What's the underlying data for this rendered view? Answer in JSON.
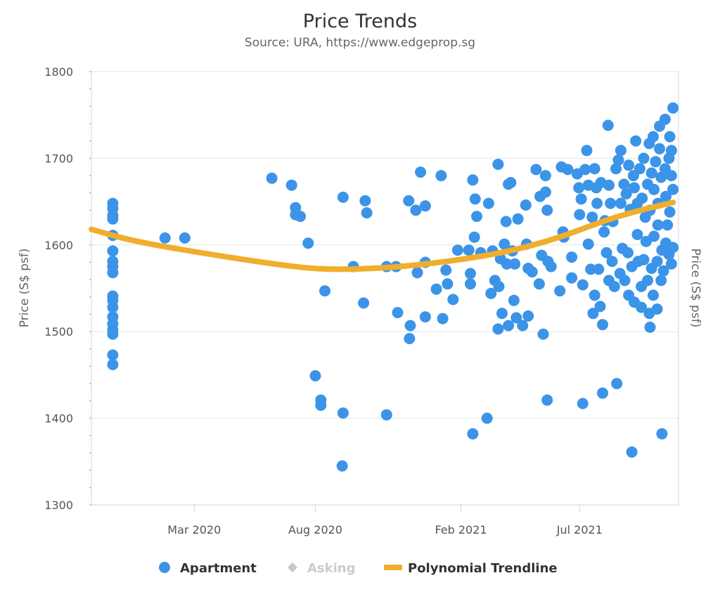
{
  "chart_data": {
    "type": "scatter",
    "title": "Price Trends",
    "subtitle": "Source: URA, https://www.edgeprop.sg",
    "ylabel": "Price (S$ psf)",
    "ylabel_right": "Price (S$ psf)",
    "xlabel": "",
    "ylim": [
      1300,
      1800
    ],
    "y_ticks": [
      1300,
      1400,
      1500,
      1600,
      1700,
      1800
    ],
    "xlim": [
      "2019-10-23",
      "2021-11-03"
    ],
    "x_ticks": [
      {
        "date": "2020-03-01",
        "label": "Mar 2020"
      },
      {
        "date": "2020-08-01",
        "label": "Aug 2020"
      },
      {
        "date": "2021-02-01",
        "label": "Feb 2021"
      },
      {
        "date": "2021-07-01",
        "label": "Jul 2021"
      }
    ],
    "grid": "horizontal",
    "legend_placement": "bottom",
    "colors": {
      "apartment": "#3b94e8",
      "asking": "#c8c8c8",
      "trendline": "#f0ae2c"
    },
    "legend": [
      {
        "name": "Apartment",
        "symbol": "circle",
        "enabled": true
      },
      {
        "name": "Asking",
        "symbol": "diamond",
        "enabled": false
      },
      {
        "name": "Polynomial Trendline",
        "symbol": "line",
        "enabled": true
      }
    ],
    "series": [
      {
        "name": "Apartment",
        "points": [
          [
            "2019-11-19",
            1648
          ],
          [
            "2019-11-19",
            1642
          ],
          [
            "2019-11-19",
            1634
          ],
          [
            "2019-11-19",
            1630
          ],
          [
            "2019-11-19",
            1611
          ],
          [
            "2019-11-19",
            1593
          ],
          [
            "2019-11-19",
            1581
          ],
          [
            "2019-11-19",
            1575
          ],
          [
            "2019-11-19",
            1568
          ],
          [
            "2019-11-19",
            1541
          ],
          [
            "2019-11-19",
            1536
          ],
          [
            "2019-11-19",
            1528
          ],
          [
            "2019-11-19",
            1517
          ],
          [
            "2019-11-19",
            1509
          ],
          [
            "2019-11-19",
            1502
          ],
          [
            "2019-11-19",
            1497
          ],
          [
            "2019-11-19",
            1473
          ],
          [
            "2019-11-19",
            1462
          ],
          [
            "2020-01-24",
            1608
          ],
          [
            "2020-02-18",
            1608
          ],
          [
            "2020-06-07",
            1677
          ],
          [
            "2020-07-02",
            1669
          ],
          [
            "2020-07-07",
            1643
          ],
          [
            "2020-07-07",
            1635
          ],
          [
            "2020-07-13",
            1633
          ],
          [
            "2020-07-23",
            1602
          ],
          [
            "2020-08-01",
            1449
          ],
          [
            "2020-08-08",
            1421
          ],
          [
            "2020-08-08",
            1415
          ],
          [
            "2020-08-13",
            1547
          ],
          [
            "2020-09-05",
            1655
          ],
          [
            "2020-09-05",
            1406
          ],
          [
            "2020-09-04",
            1345
          ],
          [
            "2020-09-18",
            1575
          ],
          [
            "2020-10-01",
            1533
          ],
          [
            "2020-10-03",
            1651
          ],
          [
            "2020-10-05",
            1637
          ],
          [
            "2020-10-30",
            1575
          ],
          [
            "2020-10-30",
            1404
          ],
          [
            "2020-11-11",
            1575
          ],
          [
            "2020-11-13",
            1522
          ],
          [
            "2020-11-27",
            1651
          ],
          [
            "2020-11-28",
            1492
          ],
          [
            "2020-11-29",
            1507
          ],
          [
            "2020-12-06",
            1640
          ],
          [
            "2020-12-08",
            1568
          ],
          [
            "2020-12-12",
            1684
          ],
          [
            "2020-12-18",
            1580
          ],
          [
            "2020-12-18",
            1645
          ],
          [
            "2020-12-18",
            1517
          ],
          [
            "2021-01-01",
            1549
          ],
          [
            "2021-01-07",
            1680
          ],
          [
            "2021-01-09",
            1515
          ],
          [
            "2021-01-13",
            1571
          ],
          [
            "2021-01-15",
            1555
          ],
          [
            "2021-01-22",
            1537
          ],
          [
            "2021-01-28",
            1594
          ],
          [
            "2021-02-11",
            1594
          ],
          [
            "2021-02-13",
            1567
          ],
          [
            "2021-02-13",
            1555
          ],
          [
            "2021-02-16",
            1675
          ],
          [
            "2021-02-16",
            1382
          ],
          [
            "2021-02-18",
            1609
          ],
          [
            "2021-02-19",
            1653
          ],
          [
            "2021-02-21",
            1633
          ],
          [
            "2021-02-26",
            1591
          ],
          [
            "2021-03-06",
            1400
          ],
          [
            "2021-03-08",
            1648
          ],
          [
            "2021-03-11",
            1544
          ],
          [
            "2021-03-13",
            1593
          ],
          [
            "2021-03-16",
            1559
          ],
          [
            "2021-03-20",
            1693
          ],
          [
            "2021-03-20",
            1503
          ],
          [
            "2021-03-21",
            1552
          ],
          [
            "2021-03-23",
            1584
          ],
          [
            "2021-03-25",
            1521
          ],
          [
            "2021-03-28",
            1601
          ],
          [
            "2021-03-30",
            1627
          ],
          [
            "2021-03-31",
            1578
          ],
          [
            "2021-04-02",
            1670
          ],
          [
            "2021-04-02",
            1507
          ],
          [
            "2021-04-05",
            1672
          ],
          [
            "2021-04-07",
            1593
          ],
          [
            "2021-04-09",
            1536
          ],
          [
            "2021-04-10",
            1578
          ],
          [
            "2021-04-12",
            1516
          ],
          [
            "2021-04-14",
            1630
          ],
          [
            "2021-04-20",
            1507
          ],
          [
            "2021-04-24",
            1646
          ],
          [
            "2021-04-25",
            1601
          ],
          [
            "2021-04-27",
            1573
          ],
          [
            "2021-04-27",
            1518
          ],
          [
            "2021-05-02",
            1569
          ],
          [
            "2021-05-07",
            1687
          ],
          [
            "2021-05-11",
            1555
          ],
          [
            "2021-05-12",
            1656
          ],
          [
            "2021-05-14",
            1588
          ],
          [
            "2021-05-16",
            1497
          ],
          [
            "2021-05-19",
            1680
          ],
          [
            "2021-05-19",
            1661
          ],
          [
            "2021-05-21",
            1640
          ],
          [
            "2021-05-21",
            1421
          ],
          [
            "2021-05-22",
            1581
          ],
          [
            "2021-05-26",
            1575
          ],
          [
            "2021-06-06",
            1547
          ],
          [
            "2021-06-08",
            1690
          ],
          [
            "2021-06-10",
            1615
          ],
          [
            "2021-06-11",
            1609
          ],
          [
            "2021-06-16",
            1687
          ],
          [
            "2021-06-21",
            1562
          ],
          [
            "2021-06-21",
            1586
          ],
          [
            "2021-06-28",
            1682
          ],
          [
            "2021-06-30",
            1666
          ],
          [
            "2021-07-01",
            1635
          ],
          [
            "2021-07-03",
            1653
          ],
          [
            "2021-07-05",
            1417
          ],
          [
            "2021-07-05",
            1554
          ],
          [
            "2021-07-08",
            1687
          ],
          [
            "2021-07-10",
            1709
          ],
          [
            "2021-07-12",
            1669
          ],
          [
            "2021-07-12",
            1601
          ],
          [
            "2021-07-15",
            1572
          ],
          [
            "2021-07-17",
            1632
          ],
          [
            "2021-07-18",
            1521
          ],
          [
            "2021-07-20",
            1688
          ],
          [
            "2021-07-20",
            1542
          ],
          [
            "2021-07-22",
            1666
          ],
          [
            "2021-07-23",
            1648
          ],
          [
            "2021-07-25",
            1572
          ],
          [
            "2021-07-27",
            1529
          ],
          [
            "2021-07-28",
            1672
          ],
          [
            "2021-07-30",
            1508
          ],
          [
            "2021-07-30",
            1429
          ],
          [
            "2021-08-01",
            1615
          ],
          [
            "2021-08-02",
            1628
          ],
          [
            "2021-08-04",
            1591
          ],
          [
            "2021-08-06",
            1738
          ],
          [
            "2021-08-07",
            1669
          ],
          [
            "2021-08-07",
            1559
          ],
          [
            "2021-08-09",
            1648
          ],
          [
            "2021-08-11",
            1581
          ],
          [
            "2021-08-12",
            1627
          ],
          [
            "2021-08-14",
            1552
          ],
          [
            "2021-08-16",
            1688
          ],
          [
            "2021-08-17",
            1440
          ],
          [
            "2021-08-19",
            1698
          ],
          [
            "2021-08-21",
            1567
          ],
          [
            "2021-08-22",
            1709
          ],
          [
            "2021-08-22",
            1648
          ],
          [
            "2021-08-24",
            1596
          ],
          [
            "2021-08-26",
            1670
          ],
          [
            "2021-08-27",
            1559
          ],
          [
            "2021-08-29",
            1659
          ],
          [
            "2021-08-31",
            1591
          ],
          [
            "2021-09-01",
            1542
          ],
          [
            "2021-09-01",
            1692
          ],
          [
            "2021-09-03",
            1641
          ],
          [
            "2021-09-05",
            1361
          ],
          [
            "2021-09-05",
            1575
          ],
          [
            "2021-09-07",
            1680
          ],
          [
            "2021-09-08",
            1666
          ],
          [
            "2021-09-08",
            1534
          ],
          [
            "2021-09-10",
            1720
          ],
          [
            "2021-09-12",
            1612
          ],
          [
            "2021-09-12",
            1648
          ],
          [
            "2021-09-13",
            1581
          ],
          [
            "2021-09-15",
            1688
          ],
          [
            "2021-09-17",
            1552
          ],
          [
            "2021-09-17",
            1528
          ],
          [
            "2021-09-18",
            1654
          ],
          [
            "2021-09-20",
            1700
          ],
          [
            "2021-09-20",
            1583
          ],
          [
            "2021-09-22",
            1632
          ],
          [
            "2021-09-23",
            1604
          ],
          [
            "2021-09-25",
            1670
          ],
          [
            "2021-09-25",
            1559
          ],
          [
            "2021-09-27",
            1717
          ],
          [
            "2021-09-27",
            1521
          ],
          [
            "2021-09-28",
            1505
          ],
          [
            "2021-09-28",
            1640
          ],
          [
            "2021-09-30",
            1683
          ],
          [
            "2021-09-30",
            1573
          ],
          [
            "2021-10-02",
            1725
          ],
          [
            "2021-10-02",
            1542
          ],
          [
            "2021-10-03",
            1610
          ],
          [
            "2021-10-03",
            1664
          ],
          [
            "2021-10-05",
            1696
          ],
          [
            "2021-10-07",
            1581
          ],
          [
            "2021-10-07",
            1526
          ],
          [
            "2021-10-08",
            1623
          ],
          [
            "2021-10-08",
            1648
          ],
          [
            "2021-10-10",
            1737
          ],
          [
            "2021-10-10",
            1711
          ],
          [
            "2021-10-12",
            1678
          ],
          [
            "2021-10-12",
            1559
          ],
          [
            "2021-10-13",
            1382
          ],
          [
            "2021-10-13",
            1594
          ],
          [
            "2021-10-15",
            1570
          ],
          [
            "2021-10-17",
            1745
          ],
          [
            "2021-10-17",
            1688
          ],
          [
            "2021-10-18",
            1656
          ],
          [
            "2021-10-18",
            1602
          ],
          [
            "2021-10-20",
            1623
          ],
          [
            "2021-10-22",
            1700
          ],
          [
            "2021-10-22",
            1589
          ],
          [
            "2021-10-23",
            1725
          ],
          [
            "2021-10-23",
            1638
          ],
          [
            "2021-10-25",
            1709
          ],
          [
            "2021-10-25",
            1578
          ],
          [
            "2021-10-25",
            1680
          ],
          [
            "2021-10-27",
            1758
          ],
          [
            "2021-10-27",
            1597
          ],
          [
            "2021-10-27",
            1664
          ]
        ]
      },
      {
        "name": "Polynomial Trendline",
        "points": [
          [
            "2019-10-23",
            1618
          ],
          [
            "2019-12-12",
            1605
          ],
          [
            "2020-03-01",
            1592
          ],
          [
            "2020-06-01",
            1579
          ],
          [
            "2020-08-01",
            1572
          ],
          [
            "2020-10-01",
            1572
          ],
          [
            "2020-12-01",
            1576
          ],
          [
            "2021-02-01",
            1583
          ],
          [
            "2021-04-01",
            1592
          ],
          [
            "2021-06-01",
            1607
          ],
          [
            "2021-08-01",
            1628
          ],
          [
            "2021-09-15",
            1640
          ],
          [
            "2021-10-27",
            1649
          ]
        ]
      }
    ]
  }
}
